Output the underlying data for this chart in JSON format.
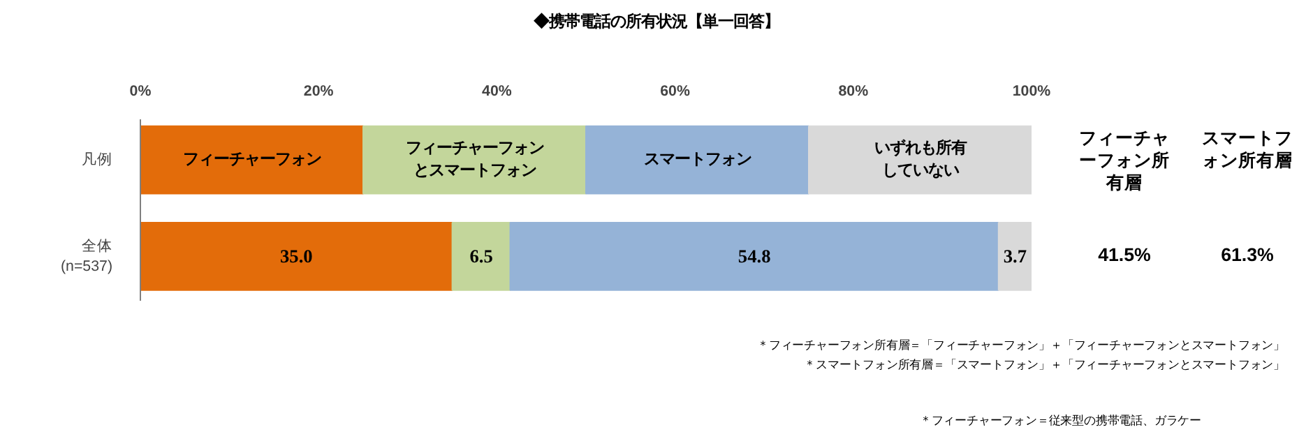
{
  "chart_data": {
    "type": "bar",
    "orientation": "horizontal",
    "stacked": true,
    "title": "◆携帯電話の所有状況【単一回答】",
    "categories": [
      "凡例",
      "全体\n(n=537)"
    ],
    "series": [
      {
        "name": "フィーチャーフォン",
        "color": "#e36c0a",
        "values": [
          25,
          35.0
        ],
        "value_labels": [
          null,
          "35.0"
        ]
      },
      {
        "name": "フィーチャーフォンとスマートフォン",
        "color": "#c3d69b",
        "values": [
          25,
          6.5
        ],
        "value_labels": [
          null,
          "6.5"
        ]
      },
      {
        "name": "スマートフォン",
        "color": "#95b3d7",
        "values": [
          25,
          54.8
        ],
        "value_labels": [
          null,
          "54.8"
        ]
      },
      {
        "name": "いずれも所有していない",
        "color": "#d9d9d9",
        "values": [
          25,
          3.7
        ],
        "value_labels": [
          null,
          "3.7"
        ]
      }
    ],
    "xlim": [
      0,
      100
    ],
    "xticks": [
      {
        "value": 0,
        "label": "0%"
      },
      {
        "value": 20,
        "label": "20%"
      },
      {
        "value": 40,
        "label": "40%"
      },
      {
        "value": 60,
        "label": "60%"
      },
      {
        "value": 80,
        "label": "80%"
      },
      {
        "value": 100,
        "label": "100%"
      }
    ],
    "grid": false,
    "annotations": [
      "フィーチャーフォン所有層",
      "スマートフォン所有層",
      "41.5%",
      "61.3%",
      "＊フィーチャーフォン所有層＝「フィーチャーフォン」＋「フィーチャーフォンとスマートフォン」",
      "＊スマートフォン所有層＝「スマートフォン」＋「フィーチャーフォンとスマートフォン」",
      "＊フィーチャーフォン＝従来型の携帯電話、ガラケー"
    ]
  }
}
